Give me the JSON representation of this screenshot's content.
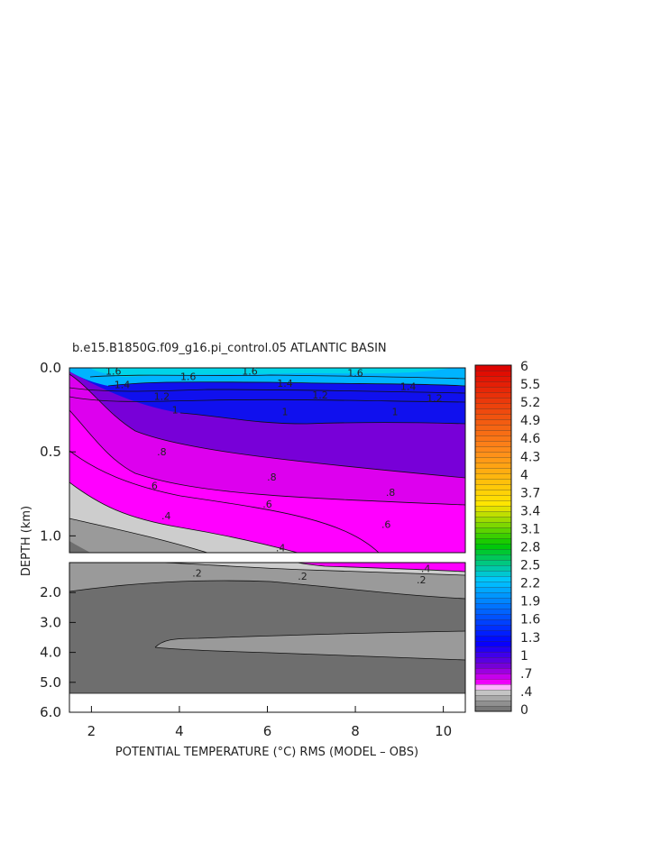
{
  "chart_data": {
    "type": "heatmap",
    "title": "b.e15.B1850G.f09_g16.pi_control.05 ATLANTIC BASIN",
    "xlabel": "POTENTIAL TEMPERATURE (°C) RMS (MODEL – OBS)",
    "ylabel": "DEPTH (km)",
    "x_ticks": [
      "2",
      "4",
      "6",
      "8",
      "10"
    ],
    "xlim": [
      1.5,
      10.5
    ],
    "upper_panel": {
      "ylim": [
        0.0,
        1.1
      ],
      "y_ticks": [
        "0.0",
        "0.5",
        "1.0"
      ]
    },
    "lower_panel": {
      "ylim": [
        1.0,
        6.0
      ],
      "y_ticks": [
        "2.0",
        "3.0",
        "4.0",
        "5.0",
        "6.0"
      ]
    },
    "grid": false,
    "contour_labels": [
      {
        "panel": "upper",
        "x": 2.5,
        "depth": 0.02,
        "text": "1.6"
      },
      {
        "panel": "upper",
        "x": 4.2,
        "depth": 0.05,
        "text": "1.6"
      },
      {
        "panel": "upper",
        "x": 5.6,
        "depth": 0.02,
        "text": "1.6"
      },
      {
        "panel": "upper",
        "x": 8.0,
        "depth": 0.03,
        "text": "1.6"
      },
      {
        "panel": "upper",
        "x": 2.7,
        "depth": 0.1,
        "text": "1.4"
      },
      {
        "panel": "upper",
        "x": 6.4,
        "depth": 0.09,
        "text": "1.4"
      },
      {
        "panel": "upper",
        "x": 9.2,
        "depth": 0.11,
        "text": "1.4"
      },
      {
        "panel": "upper",
        "x": 3.6,
        "depth": 0.17,
        "text": "1.2"
      },
      {
        "panel": "upper",
        "x": 7.2,
        "depth": 0.16,
        "text": "1.2"
      },
      {
        "panel": "upper",
        "x": 9.8,
        "depth": 0.18,
        "text": "1.2"
      },
      {
        "panel": "upper",
        "x": 3.9,
        "depth": 0.25,
        "text": "1"
      },
      {
        "panel": "upper",
        "x": 6.4,
        "depth": 0.26,
        "text": "1"
      },
      {
        "panel": "upper",
        "x": 8.9,
        "depth": 0.26,
        "text": "1"
      },
      {
        "panel": "upper",
        "x": 3.6,
        "depth": 0.5,
        "text": ".8"
      },
      {
        "panel": "upper",
        "x": 6.1,
        "depth": 0.65,
        "text": ".8"
      },
      {
        "panel": "upper",
        "x": 8.8,
        "depth": 0.74,
        "text": ".8"
      },
      {
        "panel": "upper",
        "x": 3.4,
        "depth": 0.7,
        "text": ".6"
      },
      {
        "panel": "upper",
        "x": 6.0,
        "depth": 0.81,
        "text": ".6"
      },
      {
        "panel": "upper",
        "x": 8.7,
        "depth": 0.93,
        "text": ".6"
      },
      {
        "panel": "upper",
        "x": 3.7,
        "depth": 0.88,
        "text": ".4"
      },
      {
        "panel": "upper",
        "x": 6.3,
        "depth": 1.07,
        "text": ".4"
      },
      {
        "panel": "lower",
        "x": 4.4,
        "depth": 1.35,
        "text": ".2"
      },
      {
        "panel": "lower",
        "x": 6.8,
        "depth": 1.45,
        "text": ".2"
      },
      {
        "panel": "lower",
        "x": 9.5,
        "depth": 1.57,
        "text": ".2"
      },
      {
        "panel": "lower",
        "x": 9.6,
        "depth": 1.2,
        "text": ".4"
      }
    ],
    "colorbar": {
      "min": 0,
      "max": 6,
      "labels": [
        "6",
        "5.5",
        "5.2",
        "4.9",
        "4.6",
        "4.3",
        "4",
        "3.7",
        "3.4",
        "3.1",
        "2.8",
        "2.5",
        "2.2",
        "1.9",
        "1.6",
        "1.3",
        "1",
        ".7",
        ".4",
        "0"
      ]
    },
    "colors": {
      "gray_dark": "#6e6e6e",
      "gray_mid": "#9a9a9a",
      "gray_light": "#cdcdcd",
      "magenta": "#ff00ff",
      "purple": "#7a00d6",
      "blue": "#0000ff",
      "cyan": "#00c8ff",
      "green": "#00c800",
      "yellow": "#ffe600",
      "orange": "#ff8c1a",
      "red": "#dd0000"
    }
  }
}
